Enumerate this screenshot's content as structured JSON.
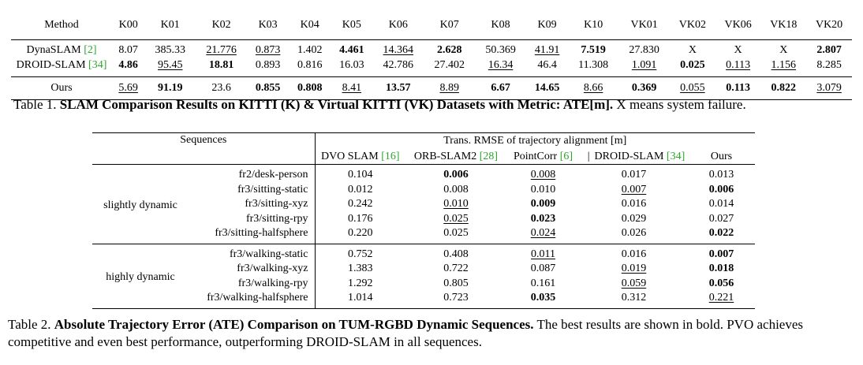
{
  "table1": {
    "columns": [
      "Method",
      "K00",
      "K01",
      "K02",
      "K03",
      "K04",
      "K05",
      "K06",
      "K07",
      "K08",
      "K09",
      "K10",
      "VK01",
      "VK02",
      "VK06",
      "VK18",
      "VK20"
    ],
    "rows": [
      {
        "method": "DynaSLAM",
        "cite": "2",
        "cells": [
          {
            "v": "8.07"
          },
          {
            "v": "385.33"
          },
          {
            "v": "21.776",
            "u": true
          },
          {
            "v": "0.873",
            "u": true
          },
          {
            "v": "1.402"
          },
          {
            "v": "4.461",
            "b": true
          },
          {
            "v": "14.364",
            "u": true
          },
          {
            "v": "2.628",
            "b": true
          },
          {
            "v": "50.369"
          },
          {
            "v": "41.91",
            "u": true
          },
          {
            "v": "7.519",
            "b": true
          },
          {
            "v": "27.830"
          },
          {
            "v": "X"
          },
          {
            "v": "X"
          },
          {
            "v": "X"
          },
          {
            "v": "2.807",
            "b": true
          }
        ]
      },
      {
        "method": "DROID-SLAM",
        "cite": "34",
        "cells": [
          {
            "v": "4.86",
            "b": true
          },
          {
            "v": "95.45",
            "u": true
          },
          {
            "v": "18.81",
            "b": true
          },
          {
            "v": "0.893"
          },
          {
            "v": "0.816"
          },
          {
            "v": "16.03"
          },
          {
            "v": "42.786"
          },
          {
            "v": "27.402"
          },
          {
            "v": "16.34",
            "u": true
          },
          {
            "v": "46.4"
          },
          {
            "v": "11.308"
          },
          {
            "v": "1.091",
            "u": true
          },
          {
            "v": "0.025",
            "b": true
          },
          {
            "v": "0.113",
            "u": true
          },
          {
            "v": "1.156",
            "u": true
          },
          {
            "v": "8.285"
          }
        ]
      },
      {
        "method": "Ours",
        "cite": "",
        "cells": [
          {
            "v": "5.69",
            "u": true
          },
          {
            "v": "91.19",
            "b": true
          },
          {
            "v": "23.6"
          },
          {
            "v": "0.855",
            "b": true
          },
          {
            "v": "0.808",
            "b": true
          },
          {
            "v": "8.41",
            "u": true
          },
          {
            "v": "13.57",
            "b": true
          },
          {
            "v": "8.89",
            "u": true
          },
          {
            "v": "6.67",
            "b": true
          },
          {
            "v": "14.65",
            "b": true
          },
          {
            "v": "8.66",
            "u": true
          },
          {
            "v": "0.369",
            "b": true
          },
          {
            "v": "0.055",
            "u": true
          },
          {
            "v": "0.113",
            "b": true
          },
          {
            "v": "0.822",
            "b": true
          },
          {
            "v": "3.079",
            "u": true
          }
        ]
      }
    ]
  },
  "caption1": {
    "prefix": "Table 1. ",
    "bold": "SLAM Comparison Results on KITTI (K) & Virtual KITTI (VK) Datasets with Metric: ATE[m].",
    "rest": " X means system failure."
  },
  "table2": {
    "seq_header": "Sequences",
    "group_header": "Trans. RMSE of trajectory alignment [m]",
    "methods": [
      {
        "name": "DVO SLAM",
        "cite": "16"
      },
      {
        "name": "ORB-SLAM2",
        "cite": "28"
      },
      {
        "name": "PointCorr",
        "cite": "6"
      },
      {
        "name": "DROID-SLAM",
        "cite": "34"
      },
      {
        "name": "Ours",
        "cite": ""
      }
    ],
    "groups": [
      {
        "category": "slightly dynamic",
        "rows": [
          {
            "seq": "fr2/desk-person",
            "cells": [
              {
                "v": "0.104"
              },
              {
                "v": "0.006",
                "b": true
              },
              {
                "v": "0.008",
                "u": true
              },
              {
                "v": "0.017"
              },
              {
                "v": "0.013"
              }
            ]
          },
          {
            "seq": "fr3/sitting-static",
            "cells": [
              {
                "v": "0.012"
              },
              {
                "v": "0.008"
              },
              {
                "v": "0.010"
              },
              {
                "v": "0.007",
                "u": true
              },
              {
                "v": "0.006",
                "b": true
              }
            ]
          },
          {
            "seq": "fr3/sitting-xyz",
            "cells": [
              {
                "v": "0.242"
              },
              {
                "v": "0.010",
                "u": true
              },
              {
                "v": "0.009",
                "b": true
              },
              {
                "v": "0.016"
              },
              {
                "v": "0.014"
              }
            ]
          },
          {
            "seq": "fr3/sitting-rpy",
            "cells": [
              {
                "v": "0.176"
              },
              {
                "v": "0.025",
                "u": true
              },
              {
                "v": "0.023",
                "b": true
              },
              {
                "v": "0.029"
              },
              {
                "v": "0.027"
              }
            ]
          },
          {
            "seq": "fr3/sitting-halfsphere",
            "cells": [
              {
                "v": "0.220"
              },
              {
                "v": "0.025"
              },
              {
                "v": "0.024",
                "u": true
              },
              {
                "v": "0.026"
              },
              {
                "v": "0.022",
                "b": true
              }
            ]
          }
        ]
      },
      {
        "category": "highly dynamic",
        "rows": [
          {
            "seq": "fr3/walking-static",
            "cells": [
              {
                "v": "0.752"
              },
              {
                "v": "0.408"
              },
              {
                "v": "0.011",
                "u": true
              },
              {
                "v": "0.016"
              },
              {
                "v": "0.007",
                "b": true
              }
            ]
          },
          {
            "seq": "fr3/walking-xyz",
            "cells": [
              {
                "v": "1.383"
              },
              {
                "v": "0.722"
              },
              {
                "v": "0.087"
              },
              {
                "v": "0.019",
                "u": true
              },
              {
                "v": "0.018",
                "b": true
              }
            ]
          },
          {
            "seq": "fr3/walking-rpy",
            "cells": [
              {
                "v": "1.292"
              },
              {
                "v": "0.805"
              },
              {
                "v": "0.161"
              },
              {
                "v": "0.059",
                "u": true
              },
              {
                "v": "0.056",
                "b": true
              }
            ]
          },
          {
            "seq": "fr3/walking-halfsphere",
            "cells": [
              {
                "v": "1.014"
              },
              {
                "v": "0.723"
              },
              {
                "v": "0.035",
                "b": true
              },
              {
                "v": "0.312"
              },
              {
                "v": "0.221",
                "u": true
              }
            ]
          }
        ]
      }
    ]
  },
  "caption2": {
    "prefix": "Table 2. ",
    "bold": "Absolute Trajectory Error (ATE) Comparison on TUM-RGBD Dynamic Sequences.",
    "rest": " The best results are shown in bold. PVO achieves competitive and even best performance, outperforming DROID-SLAM in all sequences."
  },
  "colors": {
    "citation": "#2fa52f",
    "text": "#000000"
  }
}
